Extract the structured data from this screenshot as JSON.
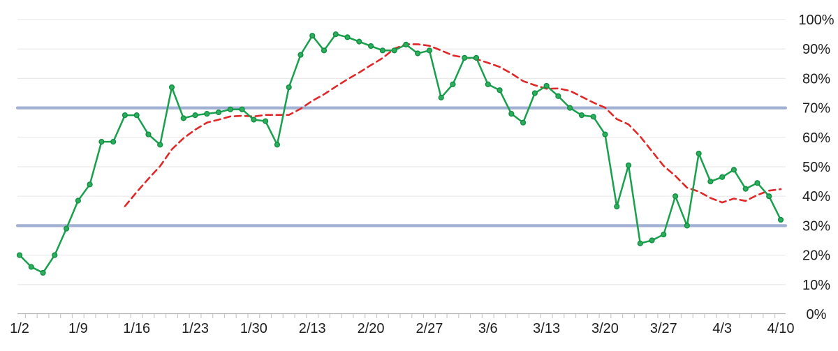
{
  "chart_data": {
    "type": "line",
    "title": "",
    "legend": false,
    "grid": true,
    "y_axis": {
      "side": "right",
      "min": 0,
      "max": 100,
      "step": 10,
      "unit": "%",
      "tick_labels": [
        "0%",
        "10%",
        "20%",
        "30%",
        "40%",
        "50%",
        "60%",
        "70%",
        "80%",
        "90%",
        "100%"
      ]
    },
    "x_axis": {
      "visible_tick_labels": [
        "1/2",
        "1/9",
        "1/16",
        "1/23",
        "1/30",
        "2/13",
        "2/20",
        "2/27",
        "3/6",
        "3/13",
        "3/20",
        "3/27",
        "4/3",
        "4/10"
      ],
      "label_every_n_points": 5
    },
    "x": [
      "1/2",
      "1/3",
      "1/4",
      "1/5",
      "1/6",
      "1/9",
      "1/10",
      "1/11",
      "1/12",
      "1/13",
      "1/16",
      "1/17",
      "1/18",
      "1/19",
      "1/20",
      "1/23",
      "1/24",
      "1/25",
      "1/26",
      "1/27",
      "1/30",
      "1/31",
      "2/1",
      "2/2",
      "2/3",
      "2/13",
      "2/14",
      "2/15",
      "2/16",
      "2/17",
      "2/20",
      "2/21",
      "2/22",
      "2/23",
      "2/24",
      "2/27",
      "2/28",
      "3/1",
      "3/2",
      "3/3",
      "3/6",
      "3/7",
      "3/8",
      "3/9",
      "3/10",
      "3/13",
      "3/14",
      "3/15",
      "3/16",
      "3/17",
      "3/20",
      "3/21",
      "3/22",
      "3/23",
      "3/24",
      "3/27",
      "3/28",
      "3/29",
      "3/30",
      "3/31",
      "4/3",
      "4/4",
      "4/5",
      "4/6",
      "4/7",
      "4/10"
    ],
    "series": [
      {
        "name": "daily-percent",
        "style": "solid-with-markers",
        "color": "#18a04c",
        "marker_fill": "#2eae5c",
        "marker_stroke": "#0f8f42",
        "start_index": 0,
        "values": [
          20,
          16,
          14,
          20,
          29,
          38.5,
          44,
          58.5,
          58.5,
          67.5,
          67.5,
          61,
          57.5,
          77,
          66.5,
          67.5,
          68,
          68.5,
          69.5,
          69.5,
          66,
          65.5,
          57.5,
          77,
          88,
          94.5,
          89.5,
          95,
          94,
          92.5,
          91,
          89.5,
          89.5,
          91.5,
          88.5,
          89.5,
          73.5,
          78,
          87,
          87,
          78,
          76,
          68,
          65,
          75,
          77.5,
          74,
          70,
          67.5,
          67,
          61,
          36.5,
          50.5,
          24,
          25,
          27,
          40,
          30,
          54.5,
          45,
          46.5,
          49,
          42.5,
          44.5,
          40,
          32
        ]
      },
      {
        "name": "10-day-moving-average",
        "style": "dashed",
        "color": "#e02828",
        "start_index": 9,
        "values": [
          36.6,
          41.4,
          45.9,
          50.2,
          55.9,
          59.7,
          62.6,
          65.0,
          66.0,
          67.1,
          67.3,
          67.1,
          67.6,
          67.6,
          67.6,
          69.7,
          72.4,
          74.6,
          77.2,
          79.7,
          82.0,
          84.5,
          86.9,
          90.1,
          91.6,
          91.6,
          91.1,
          89.5,
          87.8,
          87.1,
          86.6,
          85.3,
          83.9,
          81.7,
          79.1,
          77.7,
          76.5,
          76.6,
          75.8,
          73.8,
          71.8,
          70.1,
          66.2,
          64.4,
          60.3,
          55.3,
          50.3,
          46.9,
          42.9,
          41.6,
          39.4,
          37.9,
          39.2,
          38.4,
          40.4,
          41.9,
          42.4
        ]
      }
    ],
    "reference_lines": [
      {
        "name": "oversold-line",
        "value": 30,
        "color": "#a2b1d3"
      },
      {
        "name": "overbought-line",
        "value": 70,
        "color": "#a2b1d3"
      }
    ],
    "gridline_color": "#e9e9e9",
    "axis_line_color": "#b5b5b5",
    "tick_color": "#c9c9c9",
    "label_color": "#1e1e1e"
  }
}
